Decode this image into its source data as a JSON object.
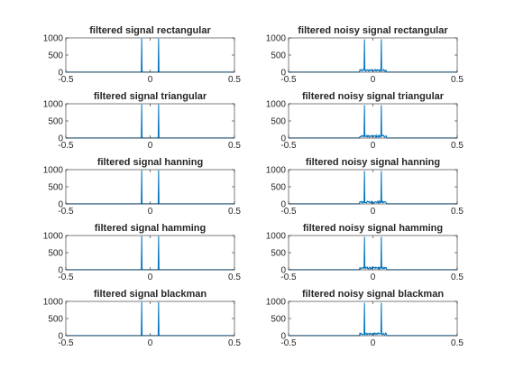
{
  "colors": {
    "line": "#0072BD",
    "axis": "#262626",
    "background": "#ffffff"
  },
  "chart_data": [
    {
      "type": "line",
      "title": "filtered signal rectangular",
      "noisy": false,
      "peaks": [
        -0.05,
        0.05
      ],
      "peak_values": [
        980,
        980
      ],
      "xlim": [
        -0.5,
        0.5
      ],
      "ylim": [
        0,
        1000
      ],
      "xticks": [
        "-0.5",
        "0",
        "0.5"
      ],
      "yticks": [
        "0",
        "500",
        "1000"
      ],
      "grid": false
    },
    {
      "type": "line",
      "title": "filtered noisy signal rectangular",
      "noisy": true,
      "peaks": [
        -0.05,
        0.05
      ],
      "peak_values": [
        960,
        960
      ],
      "noise_level": 80,
      "noise_range": [
        -0.08,
        0.08
      ],
      "xlim": [
        -0.5,
        0.5
      ],
      "ylim": [
        0,
        1000
      ],
      "xticks": [
        "-0.5",
        "0",
        "0.5"
      ],
      "yticks": [
        "0",
        "500",
        "1000"
      ],
      "grid": false
    },
    {
      "type": "line",
      "title": "filtered signal triangular",
      "noisy": false,
      "peaks": [
        -0.05,
        0.05
      ],
      "peak_values": [
        980,
        980
      ],
      "xlim": [
        -0.5,
        0.5
      ],
      "ylim": [
        0,
        1000
      ],
      "xticks": [
        "-0.5",
        "0",
        "0.5"
      ],
      "yticks": [
        "0",
        "500",
        "1000"
      ],
      "grid": false
    },
    {
      "type": "line",
      "title": "filtered noisy signal triangular",
      "noisy": true,
      "peaks": [
        -0.05,
        0.05
      ],
      "peak_values": [
        960,
        960
      ],
      "noise_level": 80,
      "noise_range": [
        -0.08,
        0.08
      ],
      "xlim": [
        -0.5,
        0.5
      ],
      "ylim": [
        0,
        1000
      ],
      "xticks": [
        "-0.5",
        "0",
        "0.5"
      ],
      "yticks": [
        "0",
        "500",
        "1000"
      ],
      "grid": false
    },
    {
      "type": "line",
      "title": "filtered signal hanning",
      "noisy": false,
      "peaks": [
        -0.05,
        0.05
      ],
      "peak_values": [
        980,
        980
      ],
      "xlim": [
        -0.5,
        0.5
      ],
      "ylim": [
        0,
        1000
      ],
      "xticks": [
        "-0.5",
        "0",
        "0.5"
      ],
      "yticks": [
        "0",
        "500",
        "1000"
      ],
      "grid": false
    },
    {
      "type": "line",
      "title": "filtered noisy signal hanning",
      "noisy": true,
      "peaks": [
        -0.05,
        0.05
      ],
      "peak_values": [
        960,
        960
      ],
      "noise_level": 80,
      "noise_range": [
        -0.08,
        0.08
      ],
      "xlim": [
        -0.5,
        0.5
      ],
      "ylim": [
        0,
        1000
      ],
      "xticks": [
        "-0.5",
        "0",
        "0.5"
      ],
      "yticks": [
        "0",
        "500",
        "1000"
      ],
      "grid": false
    },
    {
      "type": "line",
      "title": "filtered signal hamming",
      "noisy": false,
      "peaks": [
        -0.05,
        0.05
      ],
      "peak_values": [
        980,
        980
      ],
      "xlim": [
        -0.5,
        0.5
      ],
      "ylim": [
        0,
        1000
      ],
      "xticks": [
        "-0.5",
        "0",
        "0.5"
      ],
      "yticks": [
        "0",
        "500",
        "1000"
      ],
      "grid": false
    },
    {
      "type": "line",
      "title": "filtered noisy signal hamming",
      "noisy": true,
      "peaks": [
        -0.05,
        0.05
      ],
      "peak_values": [
        960,
        960
      ],
      "noise_level": 80,
      "noise_range": [
        -0.08,
        0.08
      ],
      "xlim": [
        -0.5,
        0.5
      ],
      "ylim": [
        0,
        1000
      ],
      "xticks": [
        "-0.5",
        "0",
        "0.5"
      ],
      "yticks": [
        "0",
        "500",
        "1000"
      ],
      "grid": false
    },
    {
      "type": "line",
      "title": "filtered signal blackman",
      "noisy": false,
      "peaks": [
        -0.05,
        0.05
      ],
      "peak_values": [
        980,
        980
      ],
      "xlim": [
        -0.5,
        0.5
      ],
      "ylim": [
        0,
        1000
      ],
      "xticks": [
        "-0.5",
        "0",
        "0.5"
      ],
      "yticks": [
        "0",
        "500",
        "1000"
      ],
      "grid": false
    },
    {
      "type": "line",
      "title": "filtered noisy signal blackman",
      "noisy": true,
      "peaks": [
        -0.05,
        0.05
      ],
      "peak_values": [
        960,
        960
      ],
      "noise_level": 80,
      "noise_range": [
        -0.08,
        0.08
      ],
      "xlim": [
        -0.5,
        0.5
      ],
      "ylim": [
        0,
        1000
      ],
      "xticks": [
        "-0.5",
        "0",
        "0.5"
      ],
      "yticks": [
        "0",
        "500",
        "1000"
      ],
      "grid": false
    }
  ]
}
